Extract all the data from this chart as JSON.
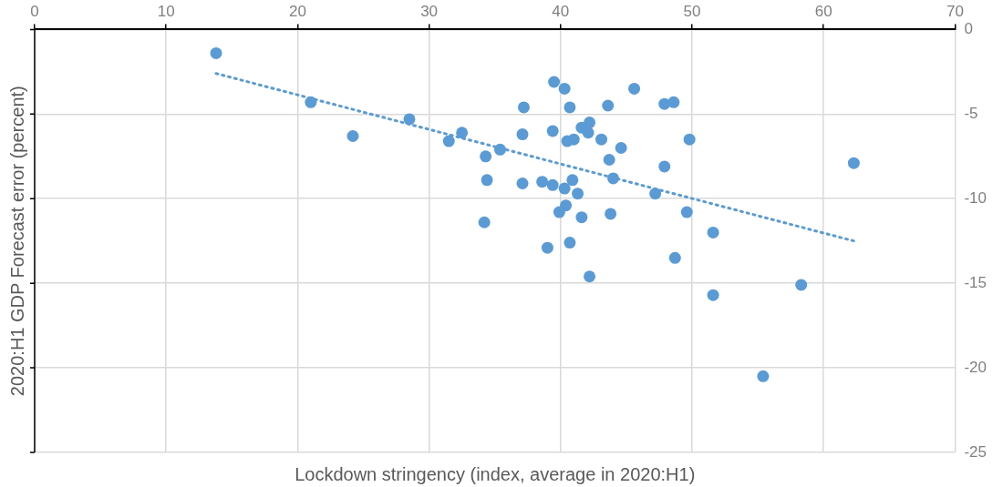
{
  "chart_data": {
    "type": "scatter",
    "xlabel": "Lockdown stringency (index, average in 2020:H1)",
    "ylabel": "2020:H1 GDP Forecast error (percent)",
    "xlim": [
      0,
      70
    ],
    "xticks": [
      0,
      10,
      20,
      30,
      40,
      50,
      60,
      70
    ],
    "ylim": [
      -25,
      0
    ],
    "yticks": [
      -25,
      -20,
      -15,
      -10,
      -5,
      0
    ],
    "grid": true,
    "legend": false,
    "marker": "circle",
    "series": [
      {
        "color": "#5b9bd5",
        "x": [
          13.8,
          21.0,
          24.2,
          28.5,
          31.5,
          32.5,
          34.3,
          35.4,
          34.4,
          34.2,
          37.2,
          37.1,
          37.1,
          38.6,
          39.4,
          39.5,
          40.3,
          40.7,
          39.4,
          40.3,
          40.9,
          41.3,
          40.4,
          39.9,
          41.6,
          40.7,
          39.0,
          42.2,
          40.5,
          41.0,
          41.6,
          42.2,
          42.1,
          43.1,
          43.6,
          45.6,
          44.6,
          43.7,
          44.0,
          43.8,
          47.9,
          48.6,
          49.8,
          47.9,
          47.2,
          49.6,
          51.6,
          48.7,
          51.6,
          55.4,
          58.3,
          62.3
        ],
        "values": [
          -1.4,
          -4.3,
          -6.3,
          -5.3,
          -6.6,
          -6.1,
          -7.5,
          -7.1,
          -8.9,
          -11.4,
          -4.6,
          -6.2,
          -9.1,
          -9.0,
          -6.0,
          -3.1,
          -3.5,
          -4.6,
          -9.2,
          -9.4,
          -8.9,
          -9.7,
          -10.4,
          -10.8,
          -11.1,
          -12.6,
          -12.9,
          -14.6,
          -6.6,
          -6.5,
          -5.8,
          -5.5,
          -6.1,
          -6.5,
          -4.5,
          -3.5,
          -7.0,
          -7.7,
          -8.8,
          -10.9,
          -4.4,
          -4.3,
          -6.5,
          -8.1,
          -9.7,
          -10.8,
          -12.0,
          -13.5,
          -15.7,
          -20.5,
          -15.1,
          -7.9
        ]
      },
      {
        "type": "line",
        "color": "#5b9bd5",
        "line_style": "dotted",
        "marker": "none",
        "x": [
          13.8,
          62.3
        ],
        "values": [
          -2.6,
          -12.5
        ]
      }
    ]
  }
}
